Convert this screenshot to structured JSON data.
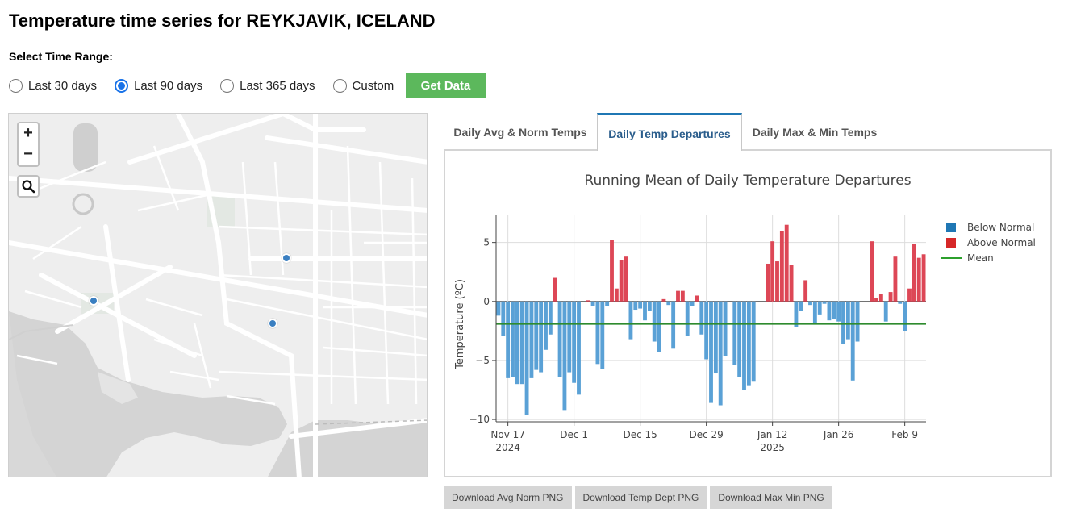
{
  "page": {
    "title": "Temperature time series for REYKJAVIK, ICELAND"
  },
  "time_range": {
    "label": "Select Time Range:",
    "options": [
      {
        "label": "Last 30 days",
        "checked": false
      },
      {
        "label": "Last 90 days",
        "checked": true
      },
      {
        "label": "Last 365 days",
        "checked": false
      },
      {
        "label": "Custom",
        "checked": false
      }
    ],
    "submit_label": "Get Data",
    "submit_color": "#5cb85c"
  },
  "map": {
    "zoom_in": "+",
    "zoom_out": "−",
    "search_icon": "search-icon",
    "marker_color": "#3a7fc1"
  },
  "tabs": [
    {
      "label": "Daily Avg & Norm Temps",
      "active": false
    },
    {
      "label": "Daily Temp Departures",
      "active": true
    },
    {
      "label": "Daily Max & Min Temps",
      "active": false
    }
  ],
  "downloads": [
    {
      "label": "Download Avg Norm PNG"
    },
    {
      "label": "Download Temp Dept PNG"
    },
    {
      "label": "Download Max Min PNG"
    }
  ],
  "chart_data": {
    "type": "bar",
    "title": "Running Mean of Daily Temperature Departures",
    "ylabel": "Temperature (ºC)",
    "xlabel": "",
    "ylim": [
      -10.2,
      7.3
    ],
    "yticks": [
      5,
      0,
      -5,
      -10
    ],
    "start_date": "2024-11-15",
    "xticks": [
      {
        "date": "2024-11-17",
        "label": "Nov 17",
        "sublabel": "2024"
      },
      {
        "date": "2024-12-01",
        "label": "Dec 1",
        "sublabel": ""
      },
      {
        "date": "2024-12-15",
        "label": "Dec 15",
        "sublabel": ""
      },
      {
        "date": "2024-12-29",
        "label": "Dec 29",
        "sublabel": ""
      },
      {
        "date": "2025-01-12",
        "label": "Jan 12",
        "sublabel": "2025"
      },
      {
        "date": "2025-01-26",
        "label": "Jan 26",
        "sublabel": ""
      },
      {
        "date": "2025-02-09",
        "label": "Feb 9",
        "sublabel": ""
      }
    ],
    "values": [
      -1.2,
      -2.9,
      -6.5,
      -6.4,
      -7.0,
      -7.0,
      -9.6,
      -6.5,
      -5.8,
      -6.0,
      -4.1,
      -2.8,
      2.0,
      -6.4,
      -9.2,
      -6.0,
      -6.9,
      -7.9,
      0.0,
      0.1,
      -0.4,
      -5.3,
      -5.7,
      -0.4,
      5.2,
      1.1,
      3.5,
      3.8,
      -3.2,
      -0.7,
      -0.6,
      -1.6,
      -0.8,
      -3.4,
      -4.3,
      0.2,
      -0.3,
      -4.0,
      0.9,
      0.9,
      -2.9,
      -0.4,
      0.5,
      -2.8,
      -4.9,
      -8.6,
      -6.1,
      -8.8,
      -4.6,
      0.0,
      -5.4,
      -6.4,
      -7.5,
      -7.1,
      -6.8,
      0.0,
      0.0,
      3.2,
      5.1,
      3.4,
      6.0,
      6.5,
      3.1,
      -2.2,
      -0.8,
      1.8,
      -0.3,
      -1.8,
      -1.1,
      -0.2,
      -1.6,
      -1.5,
      -1.7,
      -3.6,
      -3.2,
      -6.7,
      -3.4,
      0.0,
      0.0,
      5.1,
      0.3,
      0.6,
      -1.7,
      0.8,
      3.8,
      -0.2,
      -2.5,
      1.1,
      4.9,
      3.7,
      4.0
    ],
    "mean": -1.9,
    "colors": {
      "below": "#5aa1d6",
      "above": "#dd4756",
      "mean": "#2e8b2e"
    },
    "legend": {
      "placement": "right",
      "items": [
        {
          "label": "Below Normal",
          "color": "#1f77b4",
          "kind": "box"
        },
        {
          "label": "Above Normal",
          "color": "#d62728",
          "kind": "box"
        },
        {
          "label": "Mean",
          "color": "#2ca02c",
          "kind": "line"
        }
      ]
    },
    "grid": true
  }
}
